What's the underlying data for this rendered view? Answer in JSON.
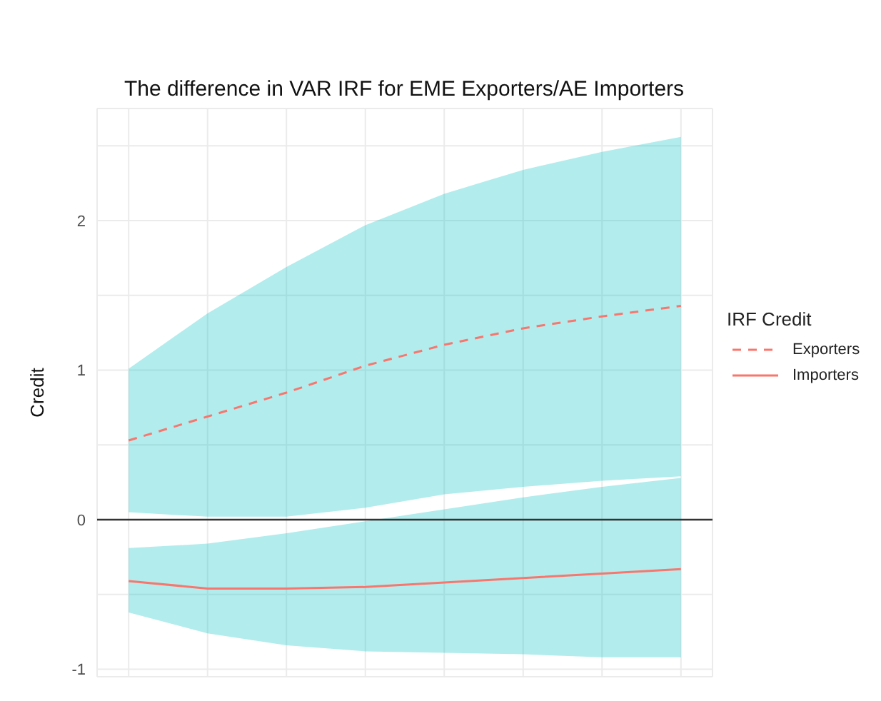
{
  "chart_data": {
    "type": "line",
    "title": "The difference in VAR IRF for EME Exporters/AE Importers",
    "ylabel": "Credit",
    "legend_title": "IRF Credit",
    "categories": [
      null,
      null,
      null,
      null,
      null,
      null,
      null,
      null
    ],
    "series": [
      {
        "name": "Exporters",
        "color": "#f8766d",
        "line_style": "dashed",
        "values": [
          0.53,
          0.69,
          0.85,
          1.03,
          1.17,
          1.28,
          1.36,
          1.43
        ],
        "lower": [
          0.05,
          0.02,
          0.02,
          0.08,
          0.17,
          0.22,
          0.26,
          0.29
        ],
        "upper": [
          1.01,
          1.38,
          1.69,
          1.97,
          2.18,
          2.34,
          2.46,
          2.56
        ]
      },
      {
        "name": "Importers",
        "color": "#f8766d",
        "line_style": "solid",
        "values": [
          -0.41,
          -0.46,
          -0.46,
          -0.45,
          -0.42,
          -0.39,
          -0.36,
          -0.33
        ],
        "lower": [
          -0.62,
          -0.76,
          -0.84,
          -0.88,
          -0.89,
          -0.9,
          -0.92,
          -0.92
        ],
        "upper": [
          -0.19,
          -0.16,
          -0.09,
          -0.01,
          0.07,
          0.15,
          0.22,
          0.28
        ]
      }
    ],
    "ylim": [
      -1.05,
      2.75
    ],
    "yticks": [
      -1,
      {
        "value": -0.5,
        "label": null
      },
      0,
      {
        "value": 0.5,
        "label": null
      },
      1,
      {
        "value": 1.5,
        "label": null
      },
      2,
      {
        "value": 2.5,
        "label": null
      }
    ],
    "ref_lines": [
      {
        "axis": "y",
        "value": 0,
        "color": "#333333"
      }
    ],
    "grid": true,
    "legend": "right",
    "tick_labels": "y"
  }
}
